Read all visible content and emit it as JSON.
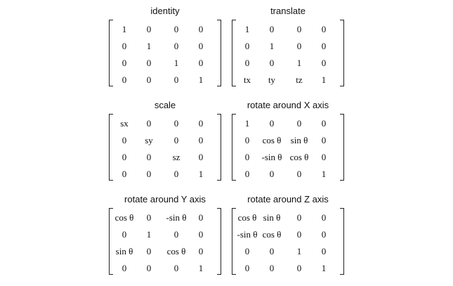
{
  "matrices": [
    {
      "title": "identity",
      "rows": [
        [
          "1",
          "0",
          "0",
          "0"
        ],
        [
          "0",
          "1",
          "0",
          "0"
        ],
        [
          "0",
          "0",
          "1",
          "0"
        ],
        [
          "0",
          "0",
          "0",
          "1"
        ]
      ]
    },
    {
      "title": "translate",
      "rows": [
        [
          "1",
          "0",
          "0",
          "0"
        ],
        [
          "0",
          "1",
          "0",
          "0"
        ],
        [
          "0",
          "0",
          "1",
          "0"
        ],
        [
          "tx",
          "ty",
          "tz",
          "1"
        ]
      ]
    },
    {
      "title": "scale",
      "rows": [
        [
          "sx",
          "0",
          "0",
          "0"
        ],
        [
          "0",
          "sy",
          "0",
          "0"
        ],
        [
          "0",
          "0",
          "sz",
          "0"
        ],
        [
          "0",
          "0",
          "0",
          "1"
        ]
      ]
    },
    {
      "title": "rotate around X axis",
      "rows": [
        [
          "1",
          "0",
          "0",
          "0"
        ],
        [
          "0",
          "cos θ",
          "sin θ",
          "0"
        ],
        [
          "0",
          "-sin θ",
          "cos θ",
          "0"
        ],
        [
          "0",
          "0",
          "0",
          "1"
        ]
      ]
    },
    {
      "title": "rotate around Y axis",
      "rows": [
        [
          "cos θ",
          "0",
          "-sin θ",
          "0"
        ],
        [
          "0",
          "1",
          "0",
          "0"
        ],
        [
          "sin θ",
          "0",
          "cos θ",
          "0"
        ],
        [
          "0",
          "0",
          "0",
          "1"
        ]
      ]
    },
    {
      "title": "rotate around Z axis",
      "rows": [
        [
          "cos θ",
          "sin θ",
          "0",
          "0"
        ],
        [
          "-sin θ",
          "cos θ",
          "0",
          "0"
        ],
        [
          "0",
          "0",
          "1",
          "0"
        ],
        [
          "0",
          "0",
          "0",
          "1"
        ]
      ]
    }
  ]
}
